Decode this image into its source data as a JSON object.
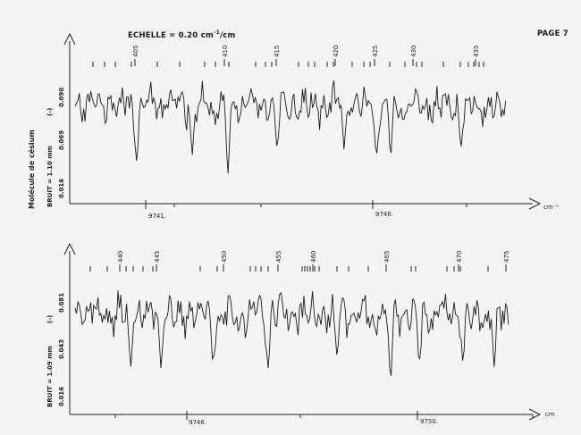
{
  "header": {
    "scale_text": "ECHELLE = 0.20 cm",
    "scale_exp": "-1",
    "scale_unit": "/cm",
    "page_label": "PAGE 7"
  },
  "molecule_label": "Molécule de césium",
  "chart_data": [
    {
      "type": "line",
      "noise_label": "BRUIT = 1.10 mm",
      "unit_label": "(-)",
      "y_tick_labels": [
        "0.090",
        "0.069",
        "0.016"
      ],
      "x_axis_label": "cm⁻¹",
      "x_tick_labels": [
        "9741.",
        "9746."
      ],
      "line_numbers": [
        "405",
        "410",
        "415",
        "420",
        "425",
        "430",
        "435"
      ],
      "xlim": [
        9740.2,
        9748.7
      ],
      "ylim": [
        0,
        1
      ]
    },
    {
      "type": "line",
      "noise_label": "BRUIT = 1.09 mm",
      "unit_label": "(-)",
      "y_tick_labels": [
        "0.081",
        "0.043",
        "0.016"
      ],
      "x_axis_label": "cm",
      "x_tick_labels": [
        "9746.",
        "9750."
      ],
      "line_numbers": [
        "440",
        "445",
        "450",
        "455",
        "460",
        "465",
        "470",
        "475"
      ],
      "xlim": [
        9744.9,
        9752.4
      ],
      "ylim": [
        0,
        1
      ]
    }
  ]
}
